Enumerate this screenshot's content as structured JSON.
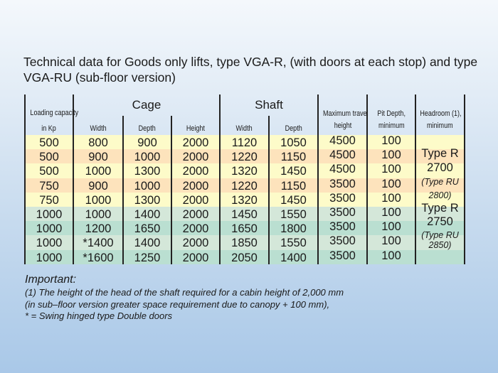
{
  "title": "Technical data for Goods only lifts, type VGA-R, (with doors at each stop) and type VGA-RU (sub-floor version)",
  "table": {
    "groups": {
      "cage": "Cage",
      "shaft": "Shaft"
    },
    "headers": {
      "loading_1": "Loading capacity",
      "loading_2": "in Kp",
      "cage_width": "Width",
      "cage_depth": "Depth",
      "cage_height": "Height",
      "shaft_width": "Width",
      "shaft_depth": "Depth",
      "travel_1": "Maximum travel",
      "travel_2": "height",
      "pit_1": "Pit Depth,",
      "pit_2": "minimum",
      "headroom_1": "Headroom (1),",
      "headroom_2": "minimum"
    },
    "rows": [
      [
        "500",
        "800",
        "900",
        "2000",
        "1120",
        "1050",
        "4500",
        "100"
      ],
      [
        "500",
        "900",
        "1000",
        "2000",
        "1220",
        "1150",
        "4500",
        "100"
      ],
      [
        "500",
        "1000",
        "1300",
        "2000",
        "1320",
        "1450",
        "4500",
        "100"
      ],
      [
        "750",
        "900",
        "1000",
        "2000",
        "1220",
        "1150",
        "3500",
        "100"
      ],
      [
        "750",
        "1000",
        "1300",
        "2000",
        "1320",
        "1450",
        "3500",
        "100"
      ],
      [
        "1000",
        "1000",
        "1400",
        "2000",
        "1450",
        "1550",
        "3500",
        "100"
      ],
      [
        "1000",
        "1200",
        "1650",
        "2000",
        "1650",
        "1800",
        "3500",
        "100"
      ],
      [
        "1000",
        "*1400",
        "1400",
        "2000",
        "1850",
        "1550",
        "3500",
        "100"
      ],
      [
        "1000",
        "*1600",
        "1250",
        "2000",
        "2050",
        "1400",
        "3500",
        "100"
      ]
    ],
    "headroom": {
      "a_type": "Type R",
      "a_value": "2700",
      "a_ru_1": "(Type RU",
      "a_ru_2": "2800)",
      "b_type": "Type R",
      "b_value": "2750",
      "b_ru_1": "(Type RU",
      "b_ru_2": "2850)"
    },
    "row_colors": [
      "#fdfbc9",
      "#fde3bc",
      "#fdfbc9",
      "#fde3bc",
      "#fdfbc9",
      "#d4e7d9",
      "#badfd1",
      "#d4e7d9",
      "#badfd1"
    ]
  },
  "notes": {
    "heading": "Important:",
    "line1": "(1) The height of the head of the shaft required for a cabin height of 2,000 mm",
    "line2": "(in sub–floor version greater space requirement due to canopy + 100 mm),",
    "line3": "* = Swing hinged type Double doors"
  }
}
